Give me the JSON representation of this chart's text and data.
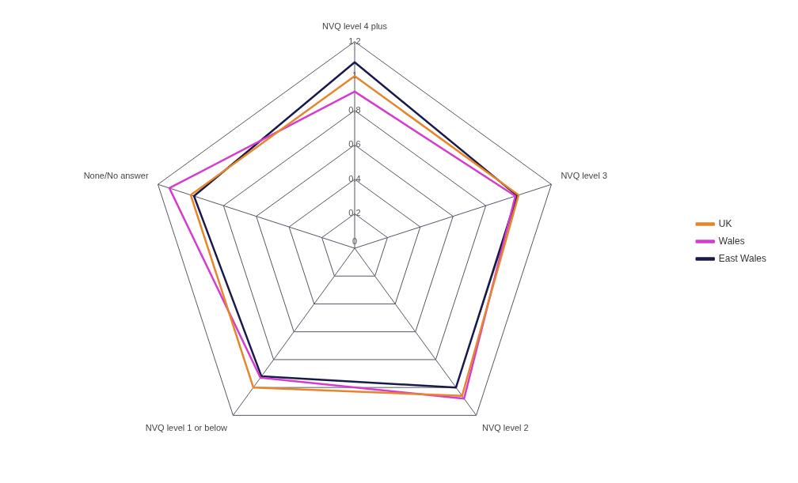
{
  "chart_data": {
    "type": "radar",
    "categories": [
      "NVQ level 4 plus",
      "NVQ level 3",
      "NVQ level 2",
      "NVQ level 1 or below",
      "None/No answer"
    ],
    "series": [
      {
        "name": "UK",
        "color": "#e8842a",
        "values": [
          1.0,
          1.0,
          1.06,
          1.0,
          1.0
        ]
      },
      {
        "name": "Wales",
        "color": "#d63bd0",
        "values": [
          0.91,
          0.98,
          1.08,
          0.93,
          1.13
        ]
      },
      {
        "name": "East Wales",
        "color": "#1a1a4a",
        "values": [
          1.08,
          0.99,
          1.0,
          0.92,
          0.98
        ]
      }
    ],
    "ylim": [
      0,
      1.2
    ],
    "yticks": [
      0,
      0.2,
      0.4,
      0.6,
      0.8,
      1,
      1.2
    ],
    "grid": true,
    "legend": "right",
    "marker": "none",
    "line_style": "solid"
  }
}
